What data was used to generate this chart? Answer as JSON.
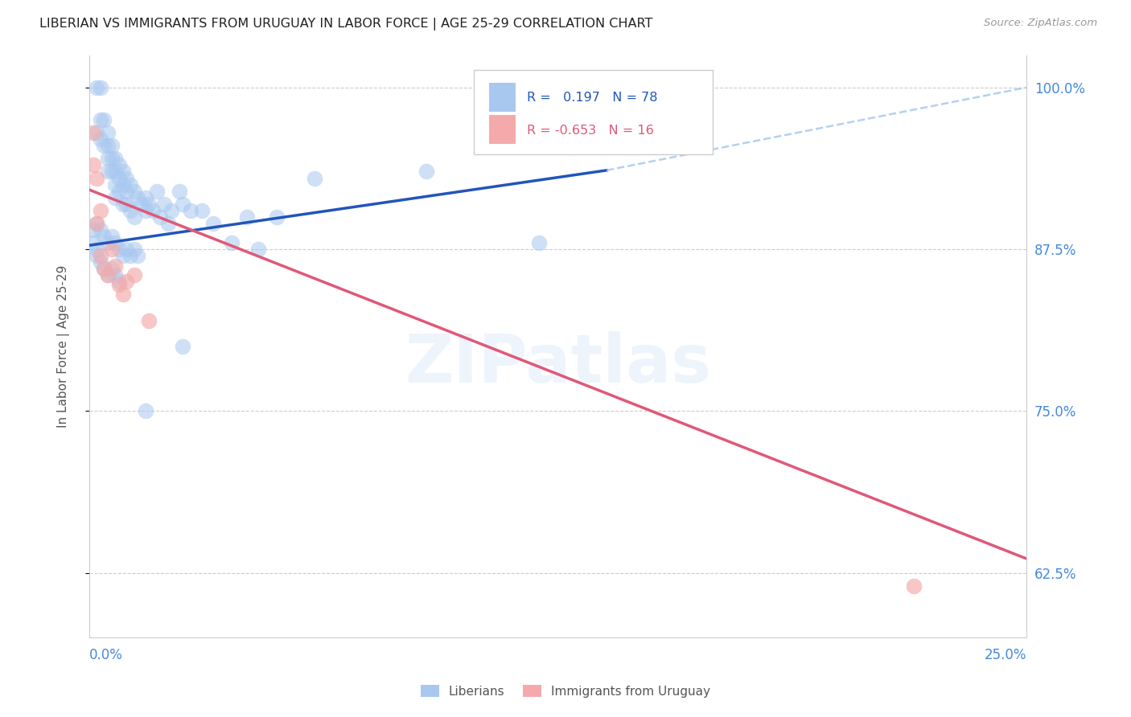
{
  "title": "LIBERIAN VS IMMIGRANTS FROM URUGUAY IN LABOR FORCE | AGE 25-29 CORRELATION CHART",
  "source": "Source: ZipAtlas.com",
  "ylabel": "In Labor Force | Age 25-29",
  "yticks": [
    0.625,
    0.75,
    0.875,
    1.0
  ],
  "ytick_labels": [
    "62.5%",
    "75.0%",
    "87.5%",
    "100.0%"
  ],
  "xmin": 0.0,
  "xmax": 0.25,
  "ymin": 0.575,
  "ymax": 1.025,
  "blue_color": "#A8C8F0",
  "pink_color": "#F4AAAA",
  "trend_blue": "#2255BB",
  "trend_pink": "#E05878",
  "dash_color": "#A8C8F0",
  "watermark": "ZIPatlas",
  "blue_line_x": [
    0.0,
    0.138
  ],
  "blue_line_y": [
    0.878,
    0.936
  ],
  "dash_line_x": [
    0.138,
    0.25
  ],
  "dash_line_y": [
    0.936,
    1.0
  ],
  "pink_line_x": [
    0.0,
    0.25
  ],
  "pink_line_y": [
    0.921,
    0.636
  ],
  "blue_scatter_x": [
    0.002,
    0.002,
    0.003,
    0.003,
    0.003,
    0.004,
    0.004,
    0.005,
    0.005,
    0.005,
    0.005,
    0.006,
    0.006,
    0.006,
    0.007,
    0.007,
    0.007,
    0.007,
    0.008,
    0.008,
    0.008,
    0.009,
    0.009,
    0.009,
    0.01,
    0.01,
    0.01,
    0.011,
    0.011,
    0.012,
    0.012,
    0.013,
    0.014,
    0.015,
    0.015,
    0.016,
    0.017,
    0.018,
    0.019,
    0.02,
    0.021,
    0.022,
    0.024,
    0.025,
    0.027,
    0.03,
    0.033,
    0.038,
    0.042,
    0.05,
    0.002,
    0.003,
    0.004,
    0.005,
    0.006,
    0.007,
    0.008,
    0.009,
    0.01,
    0.011,
    0.012,
    0.013,
    0.001,
    0.001,
    0.002,
    0.002,
    0.003,
    0.004,
    0.005,
    0.006,
    0.007,
    0.008,
    0.06,
    0.09,
    0.12,
    0.045,
    0.025,
    0.015
  ],
  "blue_scatter_y": [
    1.0,
    0.965,
    1.0,
    0.975,
    0.96,
    0.975,
    0.955,
    0.965,
    0.955,
    0.945,
    0.935,
    0.955,
    0.945,
    0.935,
    0.945,
    0.935,
    0.925,
    0.915,
    0.94,
    0.93,
    0.92,
    0.935,
    0.925,
    0.91,
    0.93,
    0.92,
    0.91,
    0.925,
    0.905,
    0.92,
    0.9,
    0.915,
    0.91,
    0.915,
    0.905,
    0.91,
    0.905,
    0.92,
    0.9,
    0.91,
    0.895,
    0.905,
    0.92,
    0.91,
    0.905,
    0.905,
    0.895,
    0.88,
    0.9,
    0.9,
    0.895,
    0.89,
    0.885,
    0.88,
    0.885,
    0.88,
    0.875,
    0.87,
    0.875,
    0.87,
    0.875,
    0.87,
    0.89,
    0.88,
    0.875,
    0.87,
    0.865,
    0.86,
    0.855,
    0.86,
    0.855,
    0.85,
    0.93,
    0.935,
    0.88,
    0.875,
    0.8,
    0.75
  ],
  "pink_scatter_x": [
    0.001,
    0.001,
    0.002,
    0.002,
    0.003,
    0.003,
    0.004,
    0.005,
    0.006,
    0.007,
    0.008,
    0.009,
    0.01,
    0.012,
    0.016,
    0.22
  ],
  "pink_scatter_y": [
    0.965,
    0.94,
    0.93,
    0.895,
    0.905,
    0.87,
    0.86,
    0.855,
    0.875,
    0.862,
    0.848,
    0.84,
    0.85,
    0.855,
    0.82,
    0.615
  ],
  "legend_text1": "R =   0.197   N = 78",
  "legend_text2": "R = -0.653   N = 16",
  "legend_color1": "#2255BB",
  "legend_color2": "#E05878"
}
